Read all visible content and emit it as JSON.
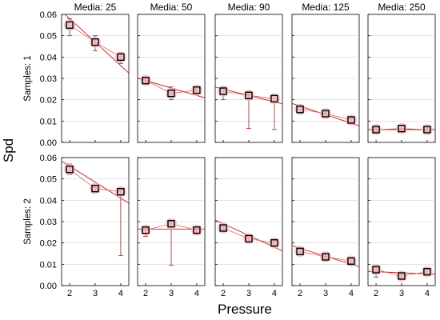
{
  "chart_data": {
    "type": "scatter",
    "ylabel": "Spd",
    "xlabel": "Pressure",
    "x_categories": [
      "2",
      "3",
      "4"
    ],
    "ylim": [
      0,
      0.06
    ],
    "yticks": [
      "0.00",
      "0.01",
      "0.02",
      "0.03",
      "0.04",
      "0.05",
      "0.06"
    ],
    "grid": true,
    "columns": [
      "Media: 25",
      "Media: 50",
      "Media: 90",
      "Media: 125",
      "Media: 250"
    ],
    "rows": [
      "Samples: 1",
      "Samples: 2"
    ],
    "marker_color": "#000000",
    "fit_color": "#b22222",
    "panels": [
      {
        "row": 0,
        "col": 0,
        "means": [
          0.055,
          0.047,
          0.04
        ],
        "lower": [
          0.05,
          0.043,
          0.037
        ],
        "upper": [
          0.058,
          0.05,
          0.042
        ],
        "fit": [
          0.058,
          0.036
        ]
      },
      {
        "row": 0,
        "col": 1,
        "means": [
          0.029,
          0.023,
          0.0245
        ],
        "lower": [
          0.028,
          0.02,
          0.023
        ],
        "upper": [
          0.03,
          0.026,
          0.0255
        ],
        "fit": [
          0.029,
          0.022
        ]
      },
      {
        "row": 0,
        "col": 2,
        "means": [
          0.024,
          0.022,
          0.0205
        ],
        "lower": [
          0.02,
          0.0065,
          0.006
        ],
        "upper": [
          0.026,
          0.024,
          0.022
        ],
        "fit": [
          0.025,
          0.019
        ]
      },
      {
        "row": 0,
        "col": 3,
        "means": [
          0.0155,
          0.0135,
          0.0105
        ],
        "lower": [
          0.0135,
          0.012,
          0.0095
        ],
        "upper": [
          0.0175,
          0.0145,
          0.0115
        ],
        "fit": [
          0.017,
          0.009
        ]
      },
      {
        "row": 0,
        "col": 4,
        "means": [
          0.006,
          0.0065,
          0.006
        ],
        "lower": [
          0.005,
          0.005,
          0.005
        ],
        "upper": [
          0.007,
          0.008,
          0.007
        ],
        "fit": [
          0.006,
          0.006
        ]
      },
      {
        "row": 1,
        "col": 0,
        "means": [
          0.0545,
          0.0455,
          0.044
        ],
        "lower": [
          0.052,
          0.044,
          0.014
        ],
        "upper": [
          0.057,
          0.047,
          0.045
        ],
        "fit": [
          0.056,
          0.041
        ]
      },
      {
        "row": 1,
        "col": 1,
        "means": [
          0.026,
          0.029,
          0.026
        ],
        "lower": [
          0.023,
          0.0095,
          0.025
        ],
        "upper": [
          0.027,
          0.03,
          0.027
        ],
        "fit": [
          0.0265,
          0.0265
        ]
      },
      {
        "row": 1,
        "col": 2,
        "means": [
          0.027,
          0.022,
          0.02
        ],
        "lower": [
          0.026,
          0.0205,
          0.019
        ],
        "upper": [
          0.028,
          0.023,
          0.021
        ],
        "fit": [
          0.029,
          0.018
        ]
      },
      {
        "row": 1,
        "col": 3,
        "means": [
          0.016,
          0.0135,
          0.0115
        ],
        "lower": [
          0.0145,
          0.0125,
          0.0105
        ],
        "upper": [
          0.017,
          0.0145,
          0.0125
        ],
        "fit": [
          0.0175,
          0.01
        ]
      },
      {
        "row": 1,
        "col": 4,
        "means": [
          0.0075,
          0.0045,
          0.0065
        ],
        "lower": [
          0.004,
          0.0035,
          0.0055
        ],
        "upper": [
          0.0085,
          0.0055,
          0.0075
        ],
        "fit": [
          0.0065,
          0.0055
        ]
      }
    ]
  }
}
